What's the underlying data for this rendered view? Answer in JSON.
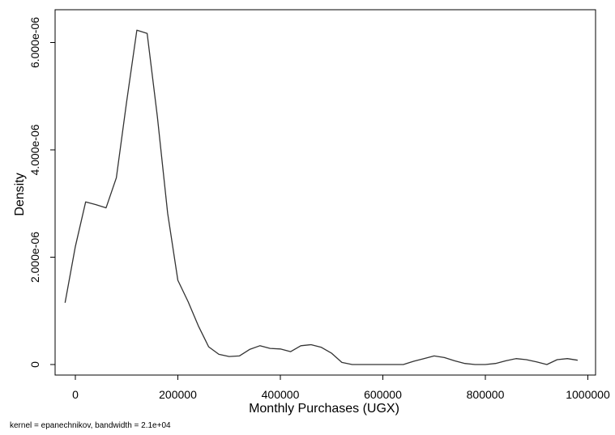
{
  "chart_data": {
    "type": "line",
    "xlabel": "Monthly Purchases (UGX)",
    "ylabel": "Density",
    "note": "kernel = epanechnikov, bandwidth =  2.1e+04",
    "xlim": [
      -30000,
      1000000
    ],
    "ylim": [
      -200000,
      6600000
    ],
    "x_ticks": [
      0,
      200000,
      400000,
      600000,
      800000,
      1000000
    ],
    "x_tick_labels": [
      "0",
      "200000",
      "400000",
      "600000",
      "800000",
      "1000000"
    ],
    "y_ticks": [
      0,
      2000000,
      4000000,
      6000000
    ],
    "y_tick_labels": [
      "0",
      "2.000e-06",
      "4.000e-06",
      "6.000e-06"
    ],
    "grid": false,
    "series": [
      {
        "x": [
          -20000,
          0,
          20000,
          40000,
          60000,
          80000,
          100000,
          120000,
          140000,
          160000,
          180000,
          200000,
          220000,
          240000,
          260000,
          280000,
          300000,
          320000,
          340000,
          360000,
          380000,
          400000,
          420000,
          440000,
          460000,
          480000,
          500000,
          520000,
          540000,
          560000,
          580000,
          600000,
          620000,
          640000,
          660000,
          680000,
          700000,
          720000,
          740000,
          760000,
          780000,
          800000,
          820000,
          840000,
          860000,
          880000,
          900000,
          920000,
          940000,
          960000,
          980000
        ],
        "y": [
          1150000,
          2200000,
          3030000,
          2980000,
          2920000,
          3480000,
          4900000,
          6230000,
          6170000,
          4620000,
          2820000,
          1570000,
          1170000,
          720000,
          330000,
          190000,
          150000,
          160000,
          280000,
          350000,
          300000,
          290000,
          240000,
          350000,
          370000,
          320000,
          210000,
          40000,
          0,
          0,
          0,
          0,
          0,
          0,
          60000,
          110000,
          160000,
          130000,
          70000,
          20000,
          0,
          0,
          20000,
          70000,
          110000,
          90000,
          50000,
          0,
          90000,
          110000,
          80000
        ]
      }
    ]
  }
}
